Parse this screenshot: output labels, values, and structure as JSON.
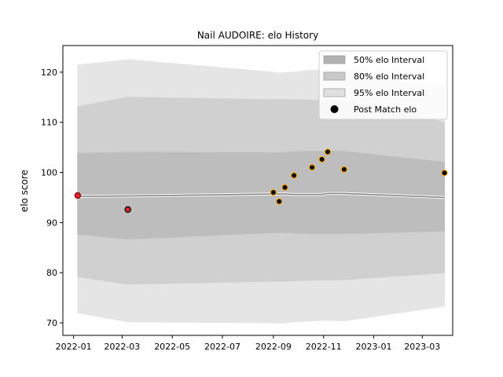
{
  "chart_data": {
    "type": "line",
    "title": "Nail AUDOIRE: elo History",
    "xlabel": "",
    "ylabel": "elo score",
    "xlim": [
      "2021-12-19",
      "2023-04-07"
    ],
    "ylim": [
      67.5,
      125.3
    ],
    "grid": false,
    "legend_position": "top-right",
    "x_ticks": [
      {
        "value": "2022-01-01",
        "label": "2022-01"
      },
      {
        "value": "2022-03-01",
        "label": "2022-03"
      },
      {
        "value": "2022-05-01",
        "label": "2022-05"
      },
      {
        "value": "2022-07-01",
        "label": "2022-07"
      },
      {
        "value": "2022-09-01",
        "label": "2022-09"
      },
      {
        "value": "2022-11-01",
        "label": "2022-11"
      },
      {
        "value": "2023-01-01",
        "label": "2023-01"
      },
      {
        "value": "2023-03-01",
        "label": "2023-03"
      }
    ],
    "y_ticks": [
      70,
      80,
      90,
      100,
      110,
      120
    ],
    "series": [
      {
        "name": "95% elo Interval",
        "kind": "band",
        "color": "#e5e5e5",
        "x": [
          "2022-01-06",
          "2022-03-08",
          "2022-09-01",
          "2022-09-08",
          "2022-09-15",
          "2022-09-26",
          "2022-10-18",
          "2022-10-30",
          "2022-11-06",
          "2022-11-26",
          "2023-03-28"
        ],
        "lower": [
          72.0,
          70.2,
          70.0,
          69.9,
          70.0,
          70.2,
          70.4,
          70.5,
          70.5,
          70.4,
          73.3
        ],
        "upper": [
          121.4,
          122.5,
          120.0,
          119.8,
          119.9,
          120.0,
          120.4,
          120.4,
          120.5,
          120.5,
          117.0
        ]
      },
      {
        "name": "80% elo Interval",
        "kind": "band",
        "color": "#d0d0d0",
        "x": [
          "2022-01-06",
          "2022-03-08",
          "2022-09-01",
          "2022-09-08",
          "2022-09-15",
          "2022-09-26",
          "2022-10-18",
          "2022-10-30",
          "2022-11-06",
          "2022-11-26",
          "2023-03-28"
        ],
        "lower": [
          79.2,
          77.7,
          78.3,
          78.3,
          78.3,
          78.4,
          78.5,
          78.5,
          78.5,
          78.6,
          80.0
        ],
        "upper": [
          113.1,
          115.0,
          114.5,
          114.5,
          114.5,
          114.5,
          114.4,
          114.4,
          114.4,
          114.3,
          110.0
        ]
      },
      {
        "name": "50% elo Interval",
        "kind": "band",
        "color": "#bdbdbd",
        "x": [
          "2022-01-06",
          "2022-03-08",
          "2022-09-01",
          "2022-09-08",
          "2022-09-15",
          "2022-09-26",
          "2022-10-18",
          "2022-10-30",
          "2022-11-06",
          "2022-11-26",
          "2023-03-28"
        ],
        "lower": [
          87.7,
          86.7,
          88.0,
          88.0,
          88.0,
          87.9,
          87.8,
          87.8,
          87.8,
          87.8,
          88.3
        ],
        "upper": [
          103.8,
          104.0,
          103.9,
          103.9,
          104.0,
          104.1,
          104.2,
          104.2,
          104.3,
          104.2,
          102.0
        ]
      },
      {
        "name": "Mean elo",
        "kind": "line",
        "color": "#808080",
        "x": [
          "2022-01-06",
          "2022-03-08",
          "2022-09-01",
          "2022-09-08",
          "2022-09-15",
          "2022-09-26",
          "2022-10-18",
          "2022-10-30",
          "2022-11-06",
          "2022-11-26",
          "2023-03-28"
        ],
        "y": [
          95.2,
          95.3,
          95.7,
          95.7,
          95.7,
          95.6,
          95.6,
          95.6,
          95.8,
          95.8,
          95.0
        ]
      },
      {
        "name": "Post Match elo",
        "kind": "scatter",
        "color": "#000000",
        "points": [
          {
            "x": "2022-01-06",
            "y": 95.4,
            "fill": "#d62728",
            "edge": "#8b0000"
          },
          {
            "x": "2022-03-08",
            "y": 92.6,
            "fill": "#d62728",
            "edge": "#000000"
          },
          {
            "x": "2022-09-01",
            "y": 96.0,
            "fill": "#000000",
            "edge": "#ffa500"
          },
          {
            "x": "2022-09-08",
            "y": 94.2,
            "fill": "#000000",
            "edge": "#ffa500"
          },
          {
            "x": "2022-09-15",
            "y": 97.0,
            "fill": "#000000",
            "edge": "#ffa500"
          },
          {
            "x": "2022-09-26",
            "y": 99.4,
            "fill": "#000000",
            "edge": "#ffa500"
          },
          {
            "x": "2022-10-18",
            "y": 101.0,
            "fill": "#000000",
            "edge": "#ffa500"
          },
          {
            "x": "2022-10-30",
            "y": 102.6,
            "fill": "#000000",
            "edge": "#ffa500"
          },
          {
            "x": "2022-11-06",
            "y": 104.1,
            "fill": "#000000",
            "edge": "#ffa500"
          },
          {
            "x": "2022-11-26",
            "y": 100.6,
            "fill": "#000000",
            "edge": "#ffa500"
          },
          {
            "x": "2023-03-28",
            "y": 99.9,
            "fill": "#000000",
            "edge": "#ffa500"
          }
        ]
      }
    ],
    "legend": [
      {
        "label": "50% elo Interval",
        "swatch": "patch",
        "color": "#b2b2b2"
      },
      {
        "label": "80% elo Interval",
        "swatch": "patch",
        "color": "#c9c9c9"
      },
      {
        "label": "95% elo Interval",
        "swatch": "patch",
        "color": "#e0e0e0"
      },
      {
        "label": "Post Match elo",
        "swatch": "marker",
        "color": "#000000"
      }
    ]
  }
}
